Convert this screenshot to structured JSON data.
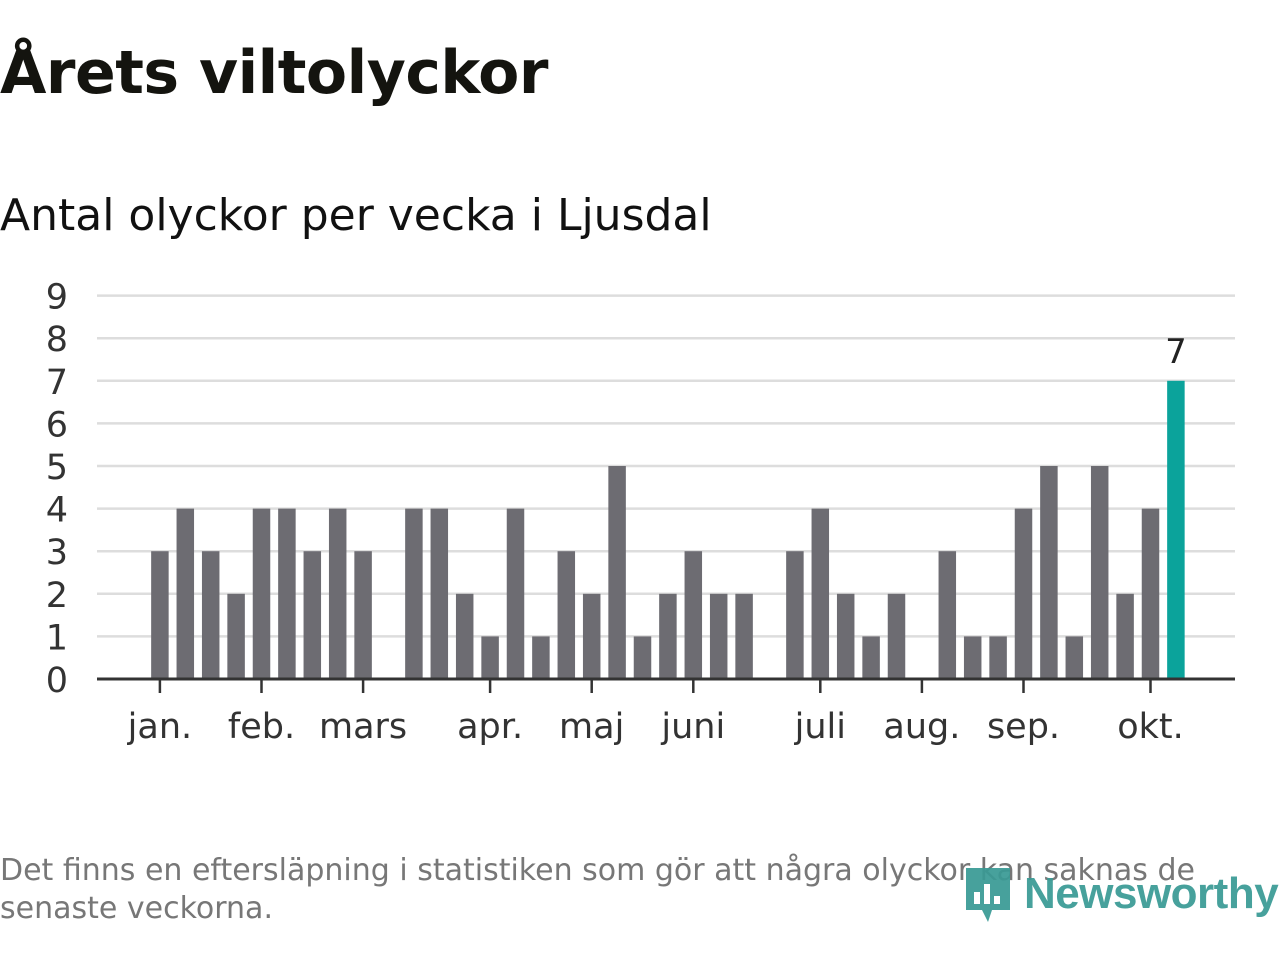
{
  "title": "Årets viltolyckor",
  "subtitle": "Antal olyckor per vecka i Ljusdal",
  "footnote": "Det finns en eftersläpning i statistiken som gör att några olyckor kan saknas de senaste veckorna.",
  "logo_text": "Newsworthy",
  "colors": {
    "bar": "#6d6c72",
    "highlight": "#0ba39b",
    "grid": "#dddddd",
    "axis": "#333333",
    "logo": "#3a9a95"
  },
  "chart_data": {
    "type": "bar",
    "title": "Årets viltolyckor",
    "subtitle": "Antal olyckor per vecka i Ljusdal",
    "ylim": [
      0,
      9
    ],
    "yticks": [
      0,
      1,
      2,
      3,
      4,
      5,
      6,
      7,
      8,
      9
    ],
    "grid": true,
    "x_start_week": 1,
    "values": [
      0,
      3,
      4,
      3,
      2,
      4,
      4,
      3,
      4,
      3,
      0,
      4,
      4,
      2,
      1,
      4,
      1,
      3,
      2,
      5,
      1,
      2,
      3,
      2,
      2,
      0,
      3,
      4,
      2,
      1,
      2,
      0,
      3,
      1,
      1,
      4,
      5,
      1,
      5,
      2,
      4,
      7
    ],
    "highlight_index": 41,
    "highlight_label": "7",
    "month_labels": [
      {
        "label": "jan.",
        "week": 1
      },
      {
        "label": "feb.",
        "week": 5
      },
      {
        "label": "mars",
        "week": 9
      },
      {
        "label": "apr.",
        "week": 14
      },
      {
        "label": "maj",
        "week": 18
      },
      {
        "label": "juni",
        "week": 22
      },
      {
        "label": "juli",
        "week": 27
      },
      {
        "label": "aug.",
        "week": 31
      },
      {
        "label": "sep.",
        "week": 35
      },
      {
        "label": "okt.",
        "week": 40
      }
    ]
  }
}
